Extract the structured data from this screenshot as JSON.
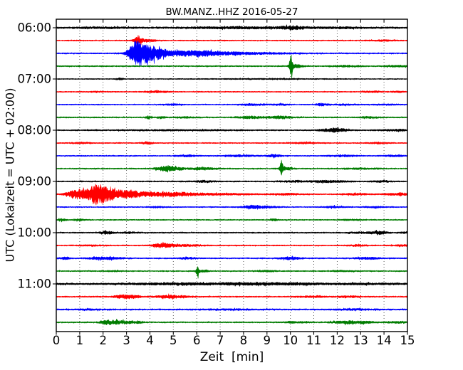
{
  "chart_data": {
    "type": "line",
    "variant": "seismogram-dayplot",
    "title": "BW.MANZ..HHZ 2016-05-27",
    "xlabel": "Zeit  [min]",
    "ylabel": "UTC (Lokalzeit = UTC + 02:00)",
    "x_range": [
      0,
      15
    ],
    "x_ticks": [
      "0",
      "1",
      "2",
      "3",
      "4",
      "5",
      "6",
      "7",
      "8",
      "9",
      "10",
      "11",
      "12",
      "13",
      "14",
      "15"
    ],
    "y_ticks": [
      "06:00",
      "07:00",
      "08:00",
      "09:00",
      "10:00",
      "11:00"
    ],
    "minutes_per_line": 15,
    "grid": true,
    "legend": "none",
    "colors": {
      "black": "#000000",
      "red": "#ff0000",
      "blue": "#0000ff",
      "green": "#007c00"
    },
    "traces": [
      {
        "time": "06:00",
        "color": "black",
        "base": 1.3,
        "events": [
          {
            "t": 2.0,
            "a": 0.5,
            "w": 1.0
          },
          {
            "t": 8.0,
            "a": 1.0,
            "w": 1.5
          },
          {
            "t": 10.1,
            "a": 2.0,
            "w": 0.3
          },
          {
            "t": 12.0,
            "a": 0.6,
            "w": 0.8
          }
        ]
      },
      {
        "time": "06:15",
        "color": "red",
        "base": 0.9,
        "events": [
          {
            "t": 3.5,
            "a": 4.5,
            "w": 0.12
          },
          {
            "t": 3.9,
            "a": 1.4,
            "w": 0.3
          },
          {
            "t": 13.9,
            "a": 0.7,
            "w": 0.4
          }
        ]
      },
      {
        "time": "06:30",
        "color": "blue",
        "base": 1.0,
        "events": [
          {
            "t": 3.45,
            "a": 16.0,
            "w": 0.25
          },
          {
            "t": 3.9,
            "a": 8.0,
            "w": 0.3
          },
          {
            "t": 4.35,
            "a": 5.5,
            "w": 0.25
          },
          {
            "t": 5.0,
            "a": 3.0,
            "w": 0.4
          },
          {
            "t": 6.05,
            "a": 3.5,
            "w": 0.5
          },
          {
            "t": 7.2,
            "a": 1.6,
            "w": 0.8
          },
          {
            "t": 9.0,
            "a": 0.8,
            "w": 1.0
          }
        ]
      },
      {
        "time": "06:45",
        "color": "green",
        "base": 1.0,
        "events": [
          {
            "t": 10.03,
            "a": 17.0,
            "w": 0.05
          },
          {
            "t": 10.25,
            "a": 2.0,
            "w": 0.2
          },
          {
            "t": 12.4,
            "a": 0.9,
            "w": 0.4
          },
          {
            "t": 14.6,
            "a": 0.9,
            "w": 0.4
          }
        ]
      },
      {
        "time": "07:00",
        "color": "black",
        "base": 0.8,
        "events": [
          {
            "t": 2.7,
            "a": 1.3,
            "w": 0.1
          },
          {
            "t": 9.0,
            "a": 0.4,
            "w": 1.5
          }
        ]
      },
      {
        "time": "07:15",
        "color": "red",
        "base": 0.85,
        "events": [
          {
            "t": 1.7,
            "a": 0.6,
            "w": 0.3
          },
          {
            "t": 4.3,
            "a": 1.1,
            "w": 0.4
          },
          {
            "t": 13.5,
            "a": 0.9,
            "w": 0.3
          },
          {
            "t": 14.6,
            "a": 0.8,
            "w": 0.2
          }
        ]
      },
      {
        "time": "07:30",
        "color": "blue",
        "base": 0.85,
        "events": [
          {
            "t": 5.0,
            "a": 0.9,
            "w": 0.3
          },
          {
            "t": 8.4,
            "a": 1.0,
            "w": 0.4
          },
          {
            "t": 9.6,
            "a": 0.9,
            "w": 0.3
          },
          {
            "t": 11.35,
            "a": 1.7,
            "w": 0.18
          },
          {
            "t": 12.4,
            "a": 0.8,
            "w": 0.4
          },
          {
            "t": 14.2,
            "a": 0.8,
            "w": 0.4
          }
        ]
      },
      {
        "time": "07:45",
        "color": "green",
        "base": 1.0,
        "events": [
          {
            "t": 3.95,
            "a": 1.9,
            "w": 0.1
          },
          {
            "t": 4.5,
            "a": 1.5,
            "w": 0.12
          },
          {
            "t": 5.5,
            "a": 0.8,
            "w": 0.3
          },
          {
            "t": 8.3,
            "a": 1.7,
            "w": 0.35
          },
          {
            "t": 9.6,
            "a": 1.7,
            "w": 0.35
          },
          {
            "t": 13.4,
            "a": 0.9,
            "w": 0.3
          }
        ]
      },
      {
        "time": "08:00",
        "color": "black",
        "base": 1.0,
        "events": [
          {
            "t": 5.0,
            "a": 0.5,
            "w": 2.0
          },
          {
            "t": 11.5,
            "a": 1.0,
            "w": 0.3
          },
          {
            "t": 12.05,
            "a": 2.3,
            "w": 0.3
          },
          {
            "t": 14.5,
            "a": 0.8,
            "w": 0.5
          }
        ]
      },
      {
        "time": "08:15",
        "color": "red",
        "base": 0.9,
        "events": [
          {
            "t": 1.1,
            "a": 0.8,
            "w": 0.3
          },
          {
            "t": 3.9,
            "a": 1.7,
            "w": 0.15
          },
          {
            "t": 10.6,
            "a": 0.8,
            "w": 0.4
          },
          {
            "t": 13.8,
            "a": 0.8,
            "w": 0.3
          }
        ]
      },
      {
        "time": "08:30",
        "color": "blue",
        "base": 0.9,
        "events": [
          {
            "t": 5.6,
            "a": 1.0,
            "w": 0.3
          },
          {
            "t": 7.8,
            "a": 0.9,
            "w": 0.5
          },
          {
            "t": 9.3,
            "a": 1.9,
            "w": 0.2
          },
          {
            "t": 12.2,
            "a": 1.0,
            "w": 0.4
          },
          {
            "t": 14.4,
            "a": 0.9,
            "w": 0.3
          }
        ]
      },
      {
        "time": "08:45",
        "color": "green",
        "base": 1.0,
        "events": [
          {
            "t": 4.6,
            "a": 2.8,
            "w": 0.25
          },
          {
            "t": 5.1,
            "a": 1.8,
            "w": 0.3
          },
          {
            "t": 6.3,
            "a": 1.3,
            "w": 0.4
          },
          {
            "t": 9.62,
            "a": 11.0,
            "w": 0.05
          },
          {
            "t": 9.85,
            "a": 1.5,
            "w": 0.2
          },
          {
            "t": 13.0,
            "a": 0.7,
            "w": 0.5
          }
        ]
      },
      {
        "time": "09:00",
        "color": "black",
        "base": 1.0,
        "events": [
          {
            "t": 6.3,
            "a": 1.1,
            "w": 0.4
          },
          {
            "t": 10.2,
            "a": 1.1,
            "w": 0.4
          },
          {
            "t": 11.7,
            "a": 1.3,
            "w": 0.5
          },
          {
            "t": 13.9,
            "a": 0.9,
            "w": 0.3
          }
        ]
      },
      {
        "time": "09:15",
        "color": "red",
        "base": 1.0,
        "events": [
          {
            "t": 0.9,
            "a": 6.0,
            "w": 0.3
          },
          {
            "t": 1.75,
            "a": 14.0,
            "w": 0.3
          },
          {
            "t": 2.4,
            "a": 6.0,
            "w": 0.3
          },
          {
            "t": 3.15,
            "a": 4.5,
            "w": 0.35
          },
          {
            "t": 4.1,
            "a": 2.5,
            "w": 0.5
          },
          {
            "t": 5.3,
            "a": 1.8,
            "w": 0.6
          },
          {
            "t": 7.0,
            "a": 1.0,
            "w": 1.0
          },
          {
            "t": 9.9,
            "a": 0.9,
            "w": 0.4
          },
          {
            "t": 12.8,
            "a": 0.9,
            "w": 0.4
          },
          {
            "t": 14.3,
            "a": 1.0,
            "w": 0.2
          },
          {
            "t": 14.7,
            "a": 2.3,
            "w": 0.08
          },
          {
            "t": 15.0,
            "a": 2.2,
            "w": 0.08
          }
        ]
      },
      {
        "time": "09:30",
        "color": "blue",
        "base": 0.9,
        "events": [
          {
            "t": 4.3,
            "a": 0.8,
            "w": 0.3
          },
          {
            "t": 8.35,
            "a": 1.9,
            "w": 0.3
          },
          {
            "t": 9.0,
            "a": 1.0,
            "w": 0.4
          },
          {
            "t": 11.9,
            "a": 1.1,
            "w": 0.3
          },
          {
            "t": 13.6,
            "a": 0.9,
            "w": 0.3
          }
        ]
      },
      {
        "time": "09:45",
        "color": "green",
        "base": 0.9,
        "events": [
          {
            "t": 0.25,
            "a": 1.4,
            "w": 0.12
          },
          {
            "t": 1.0,
            "a": 0.9,
            "w": 0.2
          },
          {
            "t": 9.3,
            "a": 1.2,
            "w": 0.12
          },
          {
            "t": 12.6,
            "a": 0.8,
            "w": 0.3
          }
        ]
      },
      {
        "time": "10:00",
        "color": "black",
        "base": 1.0,
        "events": [
          {
            "t": 2.15,
            "a": 1.9,
            "w": 0.2
          },
          {
            "t": 3.1,
            "a": 0.8,
            "w": 0.3
          },
          {
            "t": 12.9,
            "a": 0.9,
            "w": 0.3
          },
          {
            "t": 13.75,
            "a": 2.1,
            "w": 0.25
          },
          {
            "t": 14.9,
            "a": 0.8,
            "w": 0.2
          }
        ]
      },
      {
        "time": "10:15",
        "color": "red",
        "base": 0.9,
        "events": [
          {
            "t": 1.5,
            "a": 0.6,
            "w": 0.5
          },
          {
            "t": 4.45,
            "a": 2.7,
            "w": 0.25
          },
          {
            "t": 5.0,
            "a": 1.5,
            "w": 0.3
          },
          {
            "t": 5.8,
            "a": 0.9,
            "w": 0.4
          },
          {
            "t": 12.9,
            "a": 1.1,
            "w": 0.3
          },
          {
            "t": 14.8,
            "a": 0.9,
            "w": 0.3
          }
        ]
      },
      {
        "time": "10:30",
        "color": "blue",
        "base": 1.0,
        "events": [
          {
            "t": 0.35,
            "a": 1.4,
            "w": 0.15
          },
          {
            "t": 1.8,
            "a": 1.2,
            "w": 0.4
          },
          {
            "t": 2.5,
            "a": 1.0,
            "w": 0.3
          },
          {
            "t": 5.6,
            "a": 1.2,
            "w": 0.25
          },
          {
            "t": 10.0,
            "a": 1.7,
            "w": 0.3
          },
          {
            "t": 13.3,
            "a": 1.1,
            "w": 0.4
          }
        ]
      },
      {
        "time": "10:45",
        "color": "green",
        "base": 0.9,
        "events": [
          {
            "t": 2.4,
            "a": 0.7,
            "w": 0.3
          },
          {
            "t": 6.05,
            "a": 7.0,
            "w": 0.05
          },
          {
            "t": 6.3,
            "a": 1.0,
            "w": 0.2
          },
          {
            "t": 8.9,
            "a": 0.8,
            "w": 0.3
          },
          {
            "t": 12.3,
            "a": 0.7,
            "w": 0.4
          }
        ]
      },
      {
        "time": "11:00",
        "color": "black",
        "base": 1.4,
        "events": [
          {
            "t": 5.5,
            "a": 0.8,
            "w": 1.5
          },
          {
            "t": 8.5,
            "a": 1.0,
            "w": 1.0
          },
          {
            "t": 10.5,
            "a": 0.8,
            "w": 0.8
          },
          {
            "t": 13.2,
            "a": 0.6,
            "w": 0.8
          }
        ]
      },
      {
        "time": "11:15",
        "color": "red",
        "base": 1.0,
        "events": [
          {
            "t": 2.9,
            "a": 2.0,
            "w": 0.3
          },
          {
            "t": 3.3,
            "a": 1.2,
            "w": 0.3
          },
          {
            "t": 4.75,
            "a": 1.7,
            "w": 0.35
          },
          {
            "t": 5.3,
            "a": 1.0,
            "w": 0.3
          },
          {
            "t": 10.9,
            "a": 0.8,
            "w": 0.4
          },
          {
            "t": 12.5,
            "a": 0.9,
            "w": 0.4
          }
        ]
      },
      {
        "time": "11:30",
        "color": "blue",
        "base": 1.1,
        "events": [
          {
            "t": 1.5,
            "a": 0.5,
            "w": 0.5
          },
          {
            "t": 7.5,
            "a": 0.5,
            "w": 1.0
          },
          {
            "t": 12.8,
            "a": 0.6,
            "w": 0.6
          }
        ]
      },
      {
        "time": "11:45",
        "color": "green",
        "base": 1.0,
        "events": [
          {
            "t": 2.2,
            "a": 2.6,
            "w": 0.25
          },
          {
            "t": 2.7,
            "a": 1.8,
            "w": 0.25
          },
          {
            "t": 3.2,
            "a": 1.2,
            "w": 0.2
          },
          {
            "t": 3.6,
            "a": 0.9,
            "w": 0.15
          },
          {
            "t": 10.3,
            "a": 0.8,
            "w": 0.4
          },
          {
            "t": 12.4,
            "a": 1.8,
            "w": 0.45
          },
          {
            "t": 13.2,
            "a": 1.0,
            "w": 0.3
          },
          {
            "t": 14.5,
            "a": 1.0,
            "w": 0.3
          }
        ]
      }
    ]
  }
}
